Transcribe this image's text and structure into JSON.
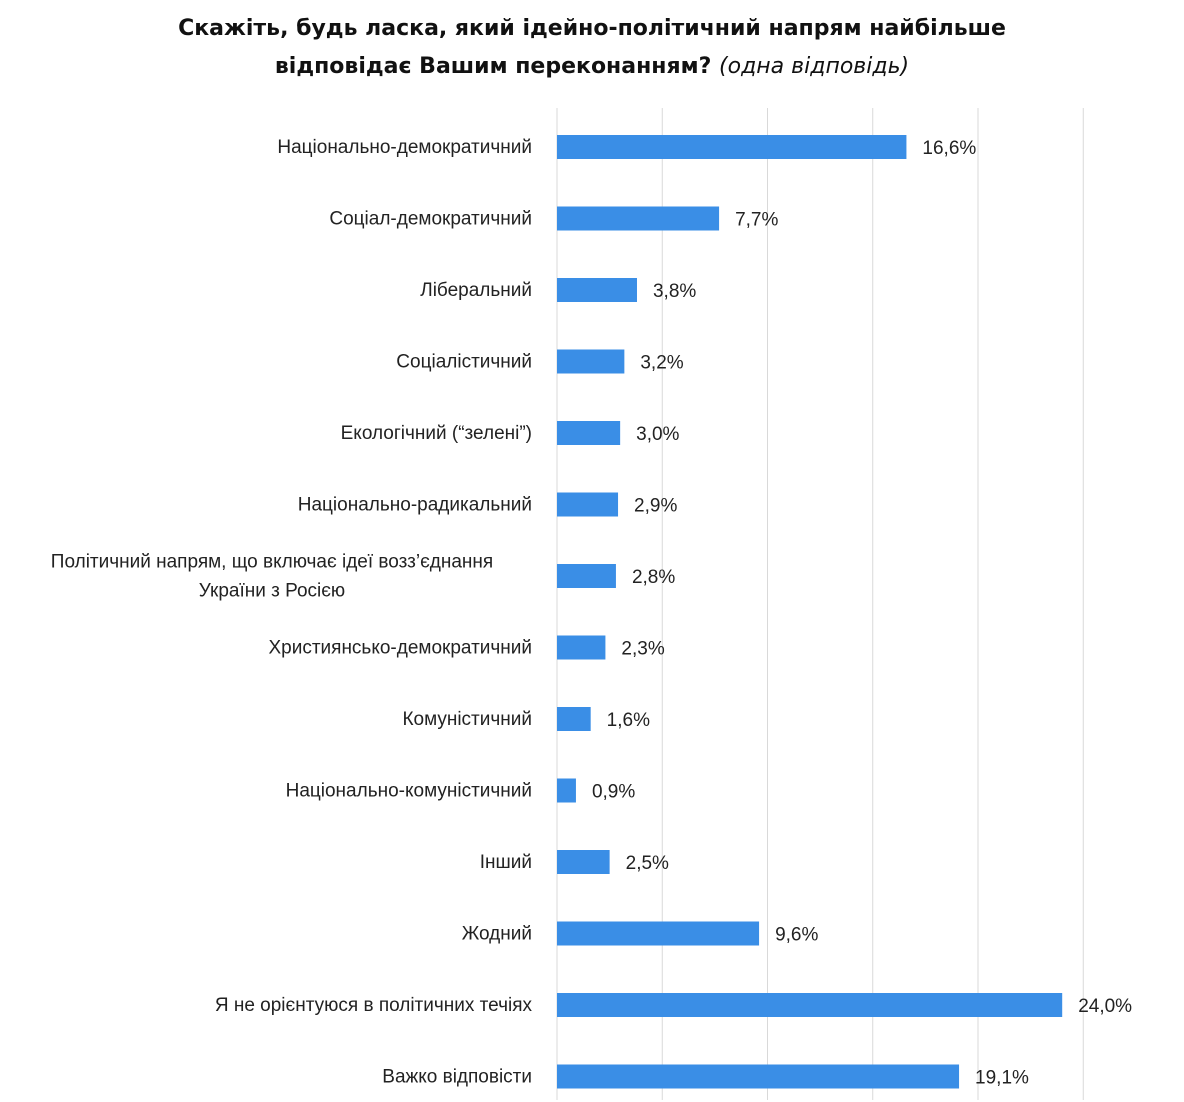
{
  "chart_data": {
    "type": "bar",
    "orientation": "horizontal",
    "title_line1": "Скажіть, будь ласка, який ідейно-політичний напрям найбільше",
    "title_line2": "відповідає Вашим переконанням?",
    "title_note": "(одна відповідь)",
    "categories": [
      [
        "Національно-демократичний"
      ],
      [
        "Соціал-демократичний"
      ],
      [
        "Ліберальний"
      ],
      [
        "Соціалістичний"
      ],
      [
        "Екологічний (“зелені”)"
      ],
      [
        "Національно-радикальний"
      ],
      [
        "Політичний напрям, що включає ідеї  возз’єднання",
        "України з Росією"
      ],
      [
        "Християнсько-демократичний"
      ],
      [
        "Комуністичний"
      ],
      [
        "Національно-комуністичний"
      ],
      [
        "Інший"
      ],
      [
        "Жодний"
      ],
      [
        "Я не орієнтуюся в політичних течіях"
      ],
      [
        "Важко відповісти"
      ]
    ],
    "values": [
      16.6,
      7.7,
      3.8,
      3.2,
      3.0,
      2.9,
      2.8,
      2.3,
      1.6,
      0.9,
      2.5,
      9.6,
      24.0,
      19.1
    ],
    "value_labels": [
      "16,6%",
      "7,7%",
      "3,8%",
      "3,2%",
      "3,0%",
      "2,9%",
      "2,8%",
      "2,3%",
      "1,6%",
      "0,9%",
      "2,5%",
      "9,6%",
      "24,0%",
      "19,1%"
    ],
    "xlim": [
      0,
      25
    ],
    "grid": true,
    "bar_color": "#3a8ee6",
    "grid_color": "#d9d9d9"
  }
}
